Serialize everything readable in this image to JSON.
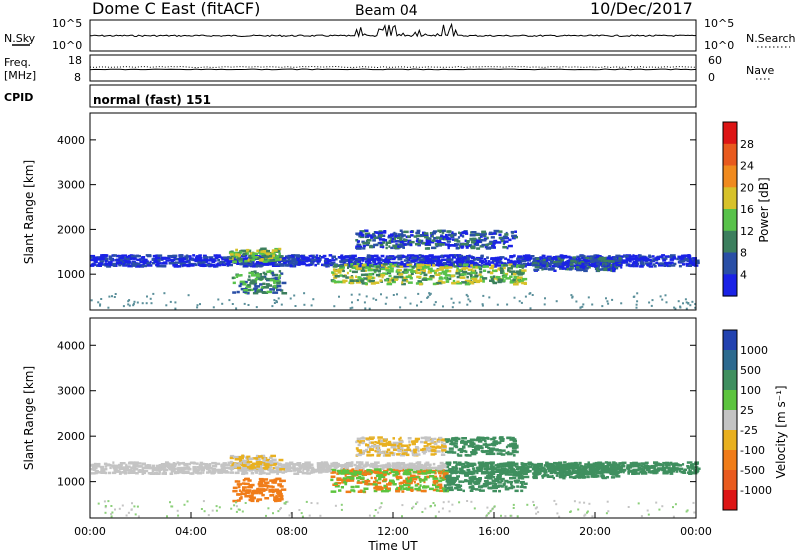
{
  "header": {
    "station": "Dome C East (fitACF)",
    "beam": "Beam 04",
    "date": "10/Dec/2017"
  },
  "side_labels": {
    "nsky": "N.Sky",
    "nsearch": "N.Search",
    "freq": "Freq.",
    "freq_unit": "[MHz]",
    "nave": "Nave",
    "cpid": "CPID"
  },
  "cpid_text": "normal (fast) 151",
  "chart_data": [
    {
      "type": "line",
      "panel": "noise",
      "left_ticks": [
        "10^5",
        "10^0"
      ],
      "right_ticks": [
        "10^5",
        "10^0"
      ],
      "note": "N.Sky trace roughly flat near 10^2 with bursty spikes 10:00-14:00"
    },
    {
      "type": "line",
      "panel": "frequency",
      "left_ticks": [
        "18",
        "8"
      ],
      "right_ticks": [
        "60",
        "0"
      ],
      "freq_mhz_approx": 12,
      "nave_approx": 33
    },
    {
      "type": "heatmap",
      "panel": "power",
      "ylabel": "Slant Range [km]",
      "yticks": [
        1000,
        2000,
        3000,
        4000
      ],
      "ylim": [
        200,
        4600
      ],
      "xlim_hours": [
        0,
        24
      ],
      "colorbar_label": "Power [dB]",
      "colorbar_ticks": [
        "4",
        "8",
        "12",
        "16",
        "20",
        "24",
        "28"
      ],
      "colorbar_colors": [
        "#1a22e6",
        "#2a4fa6",
        "#3c7f5e",
        "#58c24a",
        "#d7c22a",
        "#f08a1e",
        "#e85a1e",
        "#dd1515"
      ],
      "echo_regions": [
        {
          "t": [
            0.0,
            24.0
          ],
          "r": [
            1200,
            1450
          ],
          "level": 1
        },
        {
          "t": [
            5.5,
            7.5
          ],
          "r": [
            1300,
            1600
          ],
          "level": 4
        },
        {
          "t": [
            5.6,
            7.6
          ],
          "r": [
            600,
            1100
          ],
          "level": 3
        },
        {
          "t": [
            9.5,
            17.2
          ],
          "r": [
            800,
            1250
          ],
          "level": 4
        },
        {
          "t": [
            10.5,
            16.8
          ],
          "r": [
            1600,
            2000
          ],
          "level": 2
        },
        {
          "t": [
            17.5,
            21.0
          ],
          "r": [
            1100,
            1400
          ],
          "level": 2
        }
      ]
    },
    {
      "type": "heatmap",
      "panel": "velocity",
      "ylabel": "Slant Range [km]",
      "yticks": [
        1000,
        2000,
        3000,
        4000
      ],
      "ylim": [
        200,
        4600
      ],
      "xlim_hours": [
        0,
        24
      ],
      "xlabel": "Time UT",
      "xticks": [
        "00:00",
        "04:00",
        "08:00",
        "12:00",
        "16:00",
        "20:00",
        "00:00"
      ],
      "colorbar_label": "Velocity [m s⁻¹]",
      "colorbar_ticks": [
        "1000",
        "500",
        "100",
        "25",
        "-25",
        "-100",
        "-500",
        "-1000"
      ],
      "colorbar_colors": [
        "#2242b0",
        "#2d6a8f",
        "#3f8f5f",
        "#5cc43e",
        "#c4c4c4",
        "#e8b020",
        "#f07c18",
        "#e85a1e",
        "#dd1515"
      ]
    }
  ]
}
